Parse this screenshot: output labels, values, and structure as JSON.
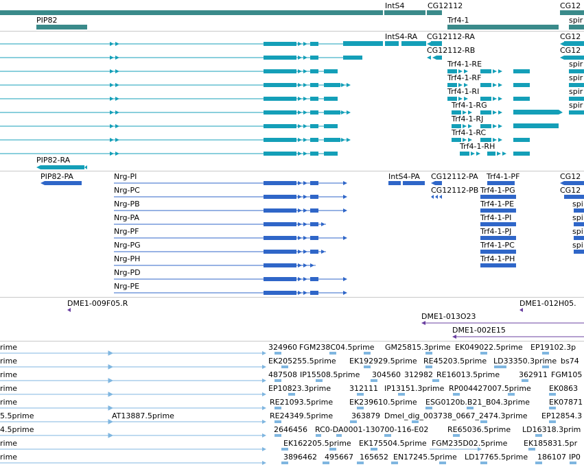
{
  "colors": {
    "gene": "#3a8a8a",
    "transcript": "#149fb8",
    "protein": "#2f66c8",
    "bac": "#6a3fa0",
    "est": "#7fb6e0",
    "label": "#000000",
    "separator": "#c8c8c8"
  },
  "genes": {
    "labels": [
      "IntS4",
      "CG12112",
      "CG12",
      "PIP82",
      "Trf4-1",
      "spir"
    ]
  },
  "transcripts": {
    "labels": [
      "IntS4-RA",
      "CG12112-RA",
      "CG12",
      "CG12112-RB",
      "CG12",
      "Trf4-1-RE",
      "spir",
      "Trf4-1-RF",
      "spir",
      "Trf4-1-RI",
      "spir",
      "Trf4-1-RG",
      "spir",
      "Trf4-1-RJ",
      "Trf4-1-RC",
      "Trf4-1-RH",
      "PIP82-RA"
    ]
  },
  "proteins": {
    "labels": [
      "PIP82-PA",
      "Nrg-PI",
      "IntS4-PA",
      "CG12112-PA",
      "Trf4-1-PF",
      "CG12",
      "Nrg-PC",
      "CG12112-PB",
      "Trf4-1-PG",
      "CG12",
      "Nrg-PB",
      "Trf4-1-PE",
      "spi",
      "Nrg-PA",
      "Trf4-1-PI",
      "spi",
      "Nrg-PF",
      "Trf4-1-PJ",
      "spi",
      "Nrg-PG",
      "Trf4-1-PC",
      "spi",
      "Nrg-PH",
      "Trf4-1-PH",
      "Nrg-PD",
      "Nrg-PE"
    ]
  },
  "bacs": {
    "labels": [
      "DME1-009F05.R",
      "DME1-012H05.",
      "DME1-013O23",
      "DME1-002E15"
    ]
  },
  "ests": {
    "labels": [
      "rime",
      "324960",
      "FGM238C04.5prime",
      "GM25815.3prime",
      "EK049022.5prime",
      "EP19102.3p",
      "rime",
      "EK205255.5prime",
      "EK192929.5prime",
      "RE45203.5prime",
      "LD33350.3prime",
      "bs74",
      "rime",
      "487508",
      "IP15508.5prime",
      "304560",
      "312982",
      "RE16013.5prime",
      "362911",
      "FGM105",
      "rime",
      "EP10823.3prime",
      "312111",
      "IP13151.3prime",
      "RP004427007.5prime",
      "EK0863",
      "rime",
      "RE21093.5prime",
      "EK239610.5prime",
      "ESG0120b.B21_B04.3prime",
      "EK07871",
      "5.5prime",
      "AT13887.5prime",
      "RE24349.5prime",
      "363879",
      "Dmel_dig_003738_0667_2474.3prime",
      "EP12854.3",
      "4.5prime",
      "2646456",
      "RC0-DA0001-130700-116-E02",
      "RE65036.5prime",
      "LD16318.3prim",
      "rime",
      "EK162205.5prime",
      "EK175504.5prime",
      "FGM235D02.5prime",
      "EK185831.5pr",
      "rime",
      "3896462",
      "495667",
      "165652",
      "EN17245.5prime",
      "LD17765.5prime",
      "186107",
      "IP0"
    ]
  }
}
